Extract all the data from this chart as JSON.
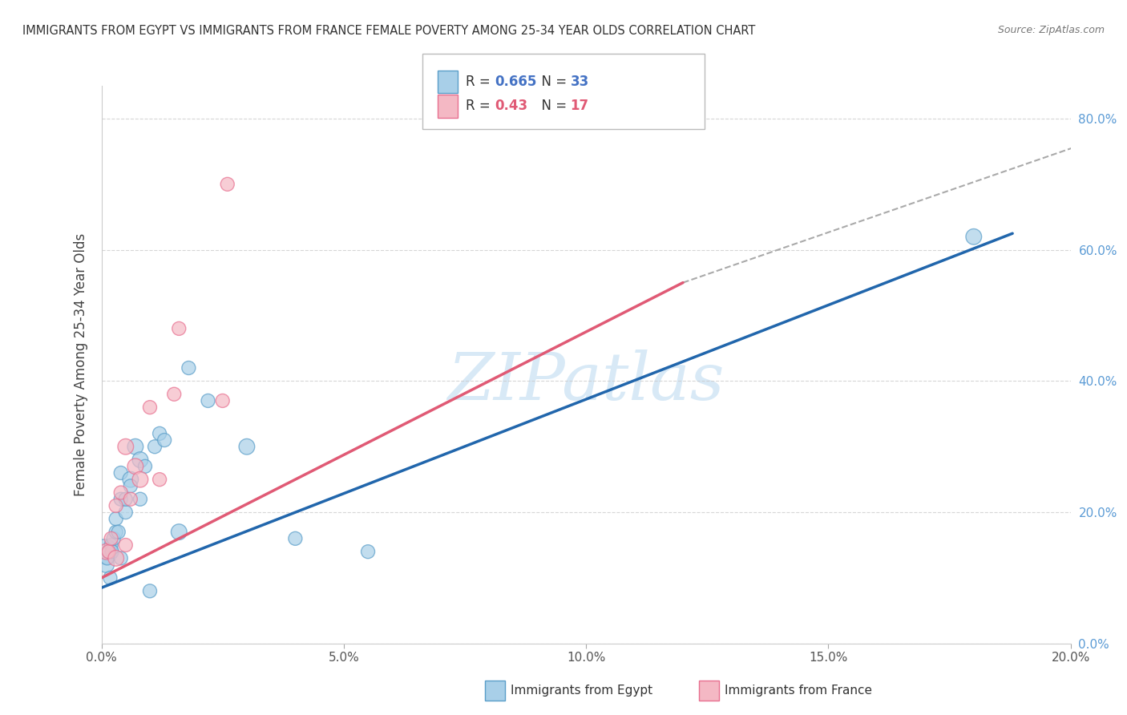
{
  "title": "IMMIGRANTS FROM EGYPT VS IMMIGRANTS FROM FRANCE FEMALE POVERTY AMONG 25-34 YEAR OLDS CORRELATION CHART",
  "source": "Source: ZipAtlas.com",
  "ylabel": "Female Poverty Among 25-34 Year Olds",
  "xlim": [
    0.0,
    0.2
  ],
  "ylim": [
    0.0,
    0.85
  ],
  "xticks": [
    0.0,
    0.05,
    0.1,
    0.15,
    0.2
  ],
  "xtick_labels": [
    "0.0%",
    "5.0%",
    "10.0%",
    "15.0%",
    "20.0%"
  ],
  "yticks_right": [
    0.0,
    0.2,
    0.4,
    0.6,
    0.8
  ],
  "ytick_labels_right": [
    "0.0%",
    "20.0%",
    "40.0%",
    "60.0%",
    "80.0%"
  ],
  "egypt_R": 0.665,
  "egypt_N": 33,
  "france_R": 0.43,
  "france_N": 17,
  "egypt_color": "#a8cfe8",
  "france_color": "#f4b8c4",
  "egypt_edge_color": "#5a9ec9",
  "france_edge_color": "#e87090",
  "egypt_line_color": "#2166ac",
  "france_line_color": "#e05a75",
  "background_color": "#ffffff",
  "grid_color": "#cccccc",
  "watermark_text": "ZIPatlas",
  "watermark_color": "#b8d8f0",
  "egypt_scatter_x": [
    0.0008,
    0.001,
    0.0012,
    0.0015,
    0.0018,
    0.002,
    0.0022,
    0.0025,
    0.003,
    0.003,
    0.0035,
    0.004,
    0.004,
    0.004,
    0.005,
    0.005,
    0.006,
    0.006,
    0.007,
    0.008,
    0.008,
    0.009,
    0.01,
    0.011,
    0.012,
    0.013,
    0.016,
    0.018,
    0.022,
    0.03,
    0.04,
    0.055,
    0.18
  ],
  "egypt_scatter_y": [
    0.14,
    0.12,
    0.13,
    0.14,
    0.1,
    0.15,
    0.14,
    0.16,
    0.17,
    0.19,
    0.17,
    0.13,
    0.22,
    0.26,
    0.2,
    0.22,
    0.25,
    0.24,
    0.3,
    0.22,
    0.28,
    0.27,
    0.08,
    0.3,
    0.32,
    0.31,
    0.17,
    0.42,
    0.37,
    0.3,
    0.16,
    0.14,
    0.62
  ],
  "egypt_scatter_sizes": [
    500,
    200,
    150,
    150,
    150,
    150,
    150,
    150,
    150,
    150,
    150,
    150,
    150,
    150,
    150,
    150,
    200,
    150,
    200,
    150,
    200,
    150,
    150,
    150,
    150,
    150,
    200,
    150,
    150,
    200,
    150,
    150,
    200
  ],
  "france_scatter_x": [
    0.001,
    0.0015,
    0.002,
    0.003,
    0.003,
    0.004,
    0.005,
    0.005,
    0.006,
    0.007,
    0.008,
    0.01,
    0.012,
    0.015,
    0.016,
    0.025,
    0.026
  ],
  "france_scatter_y": [
    0.14,
    0.14,
    0.16,
    0.13,
    0.21,
    0.23,
    0.15,
    0.3,
    0.22,
    0.27,
    0.25,
    0.36,
    0.25,
    0.38,
    0.48,
    0.37,
    0.7
  ],
  "france_scatter_sizes": [
    200,
    150,
    150,
    200,
    150,
    150,
    150,
    200,
    150,
    200,
    200,
    150,
    150,
    150,
    150,
    150,
    150
  ],
  "egypt_line_x": [
    0.0,
    0.188
  ],
  "egypt_line_y": [
    0.085,
    0.625
  ],
  "france_line_x": [
    0.0,
    0.12
  ],
  "france_line_y": [
    0.1,
    0.55
  ],
  "dashed_line_x": [
    0.12,
    0.21
  ],
  "dashed_line_y": [
    0.55,
    0.78
  ],
  "legend_egypt_color_R": "#4472c4",
  "legend_egypt_color_N": "#4472c4",
  "legend_france_color_R": "#e05a75",
  "legend_france_color_N": "#e05a75"
}
